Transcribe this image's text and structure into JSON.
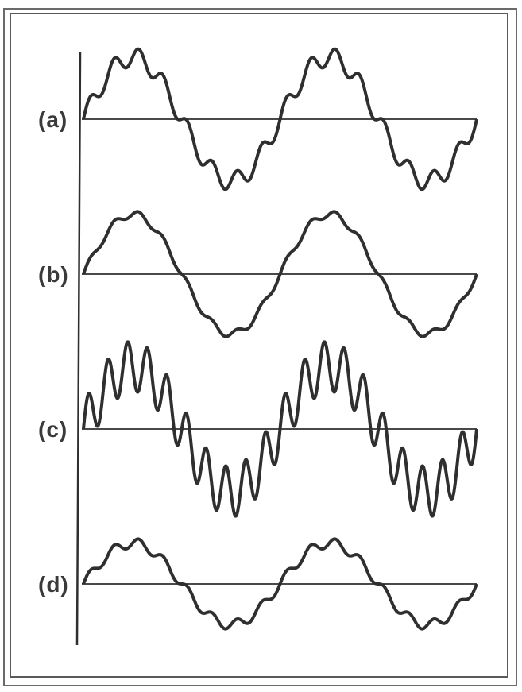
{
  "colors": {
    "ink": "#2f2f2f",
    "frame": "#5a5a5a",
    "background": "#ffffff"
  },
  "figure": {
    "panels": [
      {
        "label": "(a)",
        "fundamental_cycles": 2,
        "harmonic_ratio": 8,
        "harmonic_relative_amplitude": 0.15
      },
      {
        "label": "(b)",
        "fundamental_cycles": 2,
        "harmonic_ratio": 8,
        "harmonic_relative_amplitude": 0.06
      },
      {
        "label": "(c)",
        "fundamental_cycles": 2,
        "harmonic_ratio": 10,
        "harmonic_relative_amplitude": 0.4
      },
      {
        "label": "(d)",
        "fundamental_cycles": 2,
        "harmonic_ratio": 8,
        "harmonic_relative_amplitude": 0.12
      }
    ]
  }
}
